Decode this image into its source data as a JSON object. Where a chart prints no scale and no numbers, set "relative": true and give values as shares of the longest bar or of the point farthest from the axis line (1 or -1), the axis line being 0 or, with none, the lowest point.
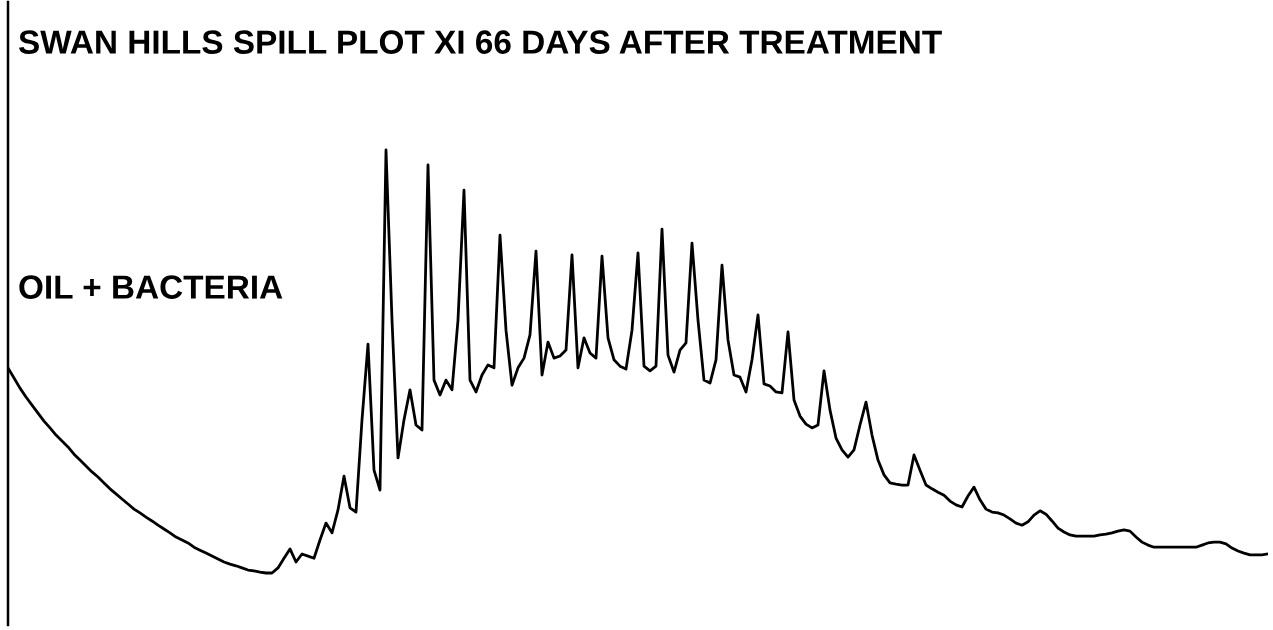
{
  "chart_data": {
    "type": "line",
    "title": "SWAN HILLS SPILL PLOT XI 66 DAYS AFTER TREATMENT",
    "annotations": [
      "OIL + BACTERIA"
    ],
    "relative": true,
    "marker": "none",
    "line_style": "solid",
    "categories": [
      null,
      null,
      null,
      null,
      null,
      null,
      null,
      null,
      null,
      null,
      null,
      null,
      null,
      null,
      null,
      null,
      null,
      null,
      null,
      null,
      null,
      null,
      null,
      null,
      null,
      null,
      null,
      null,
      null,
      null,
      null,
      null,
      null,
      null,
      null,
      null,
      null,
      null,
      null,
      null,
      null,
      null,
      null,
      null,
      null,
      null,
      null,
      null,
      null,
      null,
      null,
      null,
      null,
      null,
      null,
      null,
      null,
      null,
      null,
      null,
      null,
      null,
      null,
      null,
      null,
      null,
      null,
      null,
      null,
      null,
      null,
      null,
      null,
      null,
      null,
      null,
      null,
      null,
      null,
      null,
      null,
      null,
      null,
      null,
      null,
      null,
      null,
      null,
      null,
      null,
      null,
      null,
      null,
      null,
      null,
      null,
      null,
      null,
      null,
      null,
      null,
      null,
      null,
      null,
      null,
      null,
      null,
      null,
      null,
      null,
      null,
      null,
      null,
      null,
      null,
      null,
      null,
      null,
      null,
      null,
      null,
      null,
      null,
      null,
      null,
      null,
      null,
      null,
      null,
      null,
      null,
      null,
      null,
      null,
      null,
      null,
      null,
      null,
      null,
      null,
      null,
      null,
      null,
      null,
      null,
      null,
      null,
      null,
      null,
      null,
      null,
      null,
      null,
      null,
      null,
      null,
      null,
      null,
      null,
      null,
      null,
      null,
      null,
      null,
      null,
      null,
      null,
      null,
      null,
      null,
      null,
      null,
      null,
      null,
      null,
      null,
      null,
      null,
      null,
      null,
      null,
      null,
      null,
      null,
      null,
      null,
      null,
      null,
      null,
      null,
      null,
      null,
      null,
      null,
      null,
      null,
      null,
      null,
      null,
      null,
      null,
      null,
      null,
      null,
      null,
      null,
      null,
      null,
      null,
      null,
      null
    ],
    "series": [
      {
        "color": "#000000",
        "values": [
          0.485,
          0.461,
          0.437,
          0.416,
          0.397,
          0.378,
          0.359,
          0.343,
          0.326,
          0.312,
          0.298,
          0.281,
          0.267,
          0.253,
          0.239,
          0.227,
          0.213,
          0.199,
          0.187,
          0.175,
          0.163,
          0.151,
          0.142,
          0.132,
          0.123,
          0.113,
          0.104,
          0.095,
          0.085,
          0.078,
          0.071,
          0.061,
          0.054,
          0.047,
          0.04,
          0.033,
          0.026,
          0.021,
          0.017,
          0.012,
          0.007,
          0.005,
          0.002,
          0,
          0,
          0.012,
          0.035,
          0.057,
          0.026,
          0.045,
          0.04,
          0.035,
          0.078,
          0.118,
          0.095,
          0.149,
          0.229,
          0.154,
          0.144,
          0.362,
          0.541,
          0.243,
          0.196,
          1,
          0.598,
          0.272,
          0.362,
          0.433,
          0.35,
          0.338,
          0.965,
          0.456,
          0.421,
          0.456,
          0.433,
          0.598,
          0.905,
          0.456,
          0.428,
          0.468,
          0.492,
          0.485,
          0.799,
          0.574,
          0.444,
          0.485,
          0.508,
          0.563,
          0.761,
          0.468,
          0.546,
          0.508,
          0.513,
          0.527,
          0.752,
          0.485,
          0.556,
          0.52,
          0.508,
          0.749,
          0.556,
          0.504,
          0.489,
          0.482,
          0.574,
          0.757,
          0.489,
          0.478,
          0.489,
          0.813,
          0.515,
          0.475,
          0.527,
          0.544,
          0.78,
          0.598,
          0.456,
          0.449,
          0.504,
          0.728,
          0.551,
          0.468,
          0.463,
          0.428,
          0.504,
          0.61,
          0.447,
          0.442,
          0.428,
          0.426,
          0.57,
          0.409,
          0.371,
          0.352,
          0.343,
          0.35,
          0.478,
          0.385,
          0.319,
          0.291,
          0.274,
          0.291,
          0.35,
          0.404,
          0.326,
          0.267,
          0.232,
          0.213,
          0.21,
          0.208,
          0.208,
          0.279,
          0.243,
          0.208,
          0.199,
          0.191,
          0.184,
          0.17,
          0.161,
          0.156,
          0.182,
          0.203,
          0.173,
          0.151,
          0.144,
          0.142,
          0.137,
          0.128,
          0.118,
          0.113,
          0.121,
          0.137,
          0.147,
          0.139,
          0.123,
          0.106,
          0.097,
          0.09,
          0.087,
          0.087,
          0.087,
          0.087,
          0.09,
          0.092,
          0.095,
          0.099,
          0.102,
          0.099,
          0.085,
          0.073,
          0.066,
          0.061,
          0.061,
          0.061,
          0.061,
          0.061,
          0.061,
          0.061,
          0.061,
          0.066,
          0.071,
          0.073,
          0.073,
          0.069,
          0.059,
          0.052,
          0.047,
          0.043,
          0.043,
          0.043,
          0.045
        ]
      }
    ]
  }
}
